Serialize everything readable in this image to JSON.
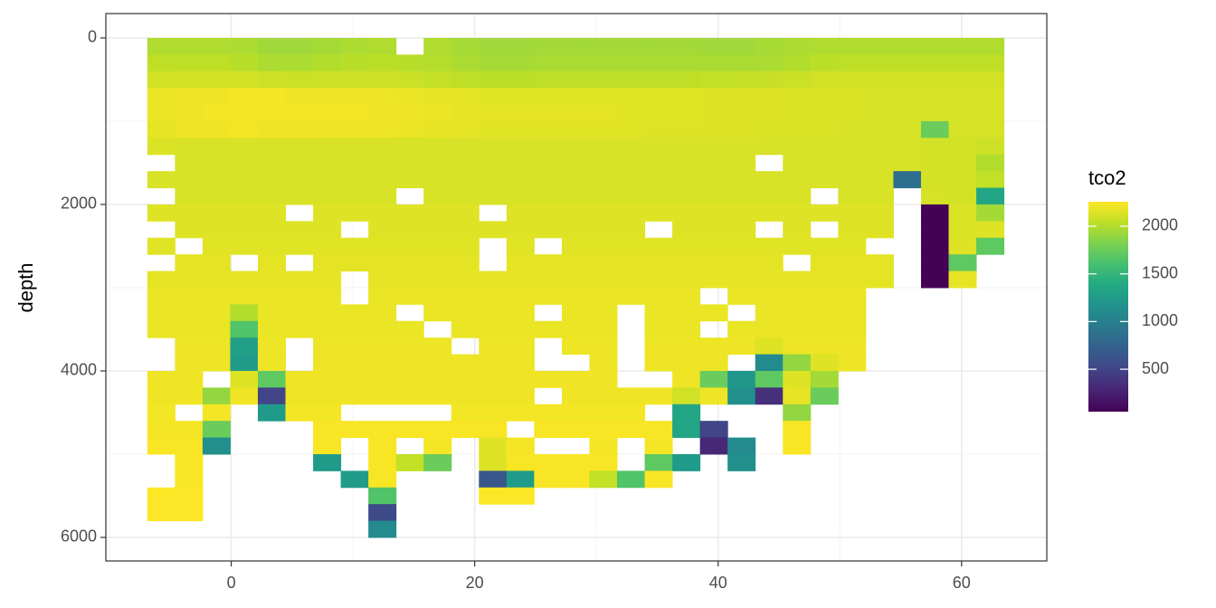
{
  "chart_data": {
    "type": "heatmap",
    "y_label": "depth",
    "legend_title": "tco2",
    "palette": "viridis",
    "grid": true,
    "y_reverse": true,
    "xlim": [
      -10.3,
      67.0
    ],
    "ylim": [
      -293,
      6283
    ],
    "xticks": [
      0,
      20,
      40,
      60
    ],
    "yticks": [
      0,
      2000,
      4000,
      6000
    ],
    "color_limits": [
      55,
      2256
    ],
    "color_ticks": [
      500,
      1000,
      1500,
      2000
    ],
    "x": [
      -5.76,
      -3.49,
      -1.22,
      1.05,
      3.32,
      5.59,
      7.86,
      10.13,
      12.4,
      14.67,
      16.94,
      19.21,
      21.48,
      23.75,
      26.02,
      28.29,
      30.56,
      32.83,
      35.1,
      37.37,
      39.64,
      41.91,
      44.18,
      46.45,
      48.72,
      50.99,
      53.26,
      55.53,
      57.8,
      60.07,
      62.34
    ],
    "y": [
      100,
      300,
      500,
      700,
      900,
      1100,
      1300,
      1500,
      1700,
      1900,
      2100,
      2300,
      2500,
      2700,
      2900,
      3100,
      3300,
      3500,
      3700,
      3900,
      4100,
      4300,
      4500,
      4700,
      4900,
      5100,
      5300,
      5500,
      5700,
      5900
    ],
    "values": [
      [
        1990,
        1990,
        1990,
        1980,
        1940,
        1940,
        1960,
        1980,
        1990,
        null,
        1990,
        1960,
        1940,
        1940,
        1950,
        1950,
        1950,
        1950,
        1950,
        1950,
        1940,
        1940,
        1960,
        1980,
        1990,
        1990,
        1990,
        1990,
        1990,
        1990,
        1990
      ],
      [
        2040,
        2040,
        2040,
        2020,
        1980,
        1980,
        2000,
        2020,
        2030,
        2020,
        2010,
        1980,
        1960,
        1960,
        1970,
        1970,
        1970,
        1970,
        1970,
        1970,
        1970,
        1970,
        1980,
        2000,
        2030,
        2040,
        2040,
        2040,
        2040,
        2040,
        2040
      ],
      [
        2100,
        2110,
        2110,
        2110,
        2090,
        2080,
        2090,
        2090,
        2090,
        2080,
        2060,
        2040,
        2030,
        2030,
        2040,
        2040,
        2040,
        2040,
        2040,
        2040,
        2050,
        2060,
        2070,
        2080,
        2100,
        2100,
        2100,
        2100,
        2100,
        2100,
        2100
      ],
      [
        2190,
        2200,
        2210,
        2220,
        2220,
        2210,
        2210,
        2200,
        2200,
        2190,
        2180,
        2170,
        2160,
        2160,
        2160,
        2160,
        2160,
        2160,
        2160,
        2160,
        2150,
        2150,
        2150,
        2140,
        2140,
        2140,
        2130,
        2130,
        2120,
        2120,
        2120
      ],
      [
        2190,
        2210,
        2220,
        2230,
        2230,
        2230,
        2220,
        2220,
        2210,
        2200,
        2190,
        2180,
        2170,
        2170,
        2170,
        2170,
        2170,
        2160,
        2160,
        2160,
        2150,
        2150,
        2150,
        2140,
        2140,
        2140,
        2130,
        2130,
        2120,
        2120,
        2120
      ],
      [
        2180,
        2200,
        2210,
        2220,
        2210,
        2210,
        2200,
        2200,
        2200,
        2190,
        2180,
        2170,
        2160,
        2160,
        2160,
        2160,
        2160,
        2160,
        2150,
        2150,
        2150,
        2150,
        2140,
        2140,
        2140,
        2130,
        2130,
        2120,
        1750,
        2120,
        2120
      ],
      [
        2140,
        2130,
        2130,
        2130,
        2130,
        2130,
        2130,
        2130,
        2130,
        2130,
        2130,
        2130,
        2130,
        2130,
        2130,
        2130,
        2130,
        2130,
        2130,
        2130,
        2130,
        2130,
        2130,
        2130,
        2130,
        2130,
        2130,
        2120,
        2110,
        2100,
        2090
      ],
      [
        null,
        2130,
        2130,
        2130,
        2130,
        2130,
        2130,
        2130,
        2130,
        2130,
        2130,
        2130,
        2130,
        2130,
        2130,
        2130,
        2130,
        2130,
        2130,
        2130,
        2130,
        2130,
        null,
        2130,
        2130,
        2130,
        2130,
        2120,
        2110,
        2100,
        2000
      ],
      [
        2130,
        2130,
        2130,
        2130,
        2130,
        2130,
        2130,
        2130,
        2130,
        2130,
        2130,
        2130,
        2130,
        2130,
        2130,
        2130,
        2130,
        2130,
        2130,
        2130,
        2130,
        2130,
        2130,
        2130,
        2130,
        2130,
        2130,
        850,
        2110,
        2100,
        2050
      ],
      [
        null,
        2130,
        2130,
        2130,
        2130,
        2130,
        2130,
        2130,
        2130,
        null,
        2130,
        2130,
        2130,
        2130,
        2130,
        2130,
        2130,
        2130,
        2130,
        2130,
        2130,
        2130,
        2130,
        2130,
        null,
        2130,
        2130,
        null,
        2120,
        2110,
        1350
      ],
      [
        2150,
        2150,
        2150,
        2150,
        2150,
        null,
        2150,
        2150,
        2150,
        2150,
        2150,
        2150,
        null,
        2150,
        2150,
        2150,
        2150,
        2150,
        2150,
        2150,
        2150,
        2150,
        2150,
        2150,
        2150,
        2150,
        2150,
        null,
        60,
        2140,
        1950
      ],
      [
        null,
        2150,
        2150,
        2150,
        2150,
        2150,
        2150,
        null,
        2150,
        2150,
        2150,
        2150,
        2150,
        2150,
        2150,
        2150,
        2150,
        2150,
        null,
        2150,
        2150,
        2150,
        null,
        2150,
        null,
        2150,
        2150,
        null,
        60,
        2140,
        2150
      ],
      [
        2160,
        null,
        2160,
        2160,
        2160,
        2160,
        2160,
        2160,
        2160,
        2160,
        2160,
        2160,
        null,
        2160,
        null,
        2160,
        2160,
        2160,
        2160,
        2160,
        2160,
        2160,
        2160,
        2160,
        2160,
        2160,
        null,
        null,
        60,
        2150,
        1700
      ],
      [
        null,
        2170,
        2170,
        null,
        2170,
        null,
        2170,
        2170,
        2170,
        2170,
        2170,
        2170,
        null,
        2170,
        2170,
        2170,
        2170,
        2170,
        2170,
        2170,
        2170,
        2170,
        2170,
        null,
        2170,
        2170,
        2170,
        null,
        60,
        1700,
        null
      ],
      [
        2180,
        2180,
        2180,
        2180,
        2180,
        2180,
        2180,
        null,
        2180,
        2180,
        2180,
        2180,
        2180,
        2180,
        2180,
        2180,
        2180,
        2180,
        2180,
        2180,
        2180,
        2180,
        2180,
        2180,
        2180,
        2180,
        2170,
        null,
        60,
        2180,
        null
      ],
      [
        2190,
        2190,
        2190,
        2190,
        2190,
        2190,
        2190,
        null,
        2190,
        2190,
        2190,
        2190,
        2190,
        2190,
        2190,
        2190,
        2190,
        2190,
        2190,
        2190,
        null,
        2190,
        2190,
        2190,
        2190,
        2190,
        null,
        null,
        null,
        null,
        null
      ],
      [
        2190,
        2190,
        2190,
        2000,
        2190,
        2190,
        2190,
        2190,
        2190,
        null,
        2190,
        2190,
        2190,
        2190,
        null,
        2190,
        2190,
        null,
        2190,
        2190,
        2190,
        null,
        2190,
        2190,
        2190,
        2190,
        null,
        null,
        null,
        null,
        null
      ],
      [
        2190,
        2190,
        2190,
        1650,
        2190,
        2190,
        2190,
        2190,
        2190,
        2190,
        null,
        2190,
        2190,
        2190,
        2190,
        2190,
        2190,
        null,
        2190,
        2190,
        null,
        2190,
        2190,
        2190,
        2190,
        2190,
        null,
        null,
        null,
        null,
        null
      ],
      [
        null,
        2200,
        2200,
        1300,
        2200,
        null,
        2200,
        2200,
        2200,
        2200,
        2200,
        null,
        2200,
        2200,
        null,
        2200,
        2200,
        null,
        2200,
        2200,
        2200,
        2200,
        2150,
        2200,
        2200,
        2200,
        null,
        null,
        null,
        null,
        null
      ],
      [
        null,
        2200,
        2200,
        1250,
        2200,
        null,
        2200,
        2200,
        2200,
        2200,
        2200,
        2200,
        2200,
        2200,
        null,
        null,
        2200,
        null,
        2200,
        2200,
        2200,
        null,
        1100,
        1900,
        2150,
        2200,
        null,
        null,
        null,
        null,
        null
      ],
      [
        2210,
        2210,
        null,
        2150,
        1700,
        2210,
        2210,
        2210,
        2210,
        2210,
        2210,
        2210,
        2210,
        2210,
        2210,
        2210,
        2210,
        null,
        null,
        2210,
        1750,
        1200,
        1700,
        2150,
        1950,
        null,
        null,
        null,
        null,
        null,
        null
      ],
      [
        2210,
        2210,
        1900,
        2210,
        500,
        2210,
        2210,
        2210,
        2210,
        2210,
        2210,
        2210,
        2210,
        2210,
        null,
        2210,
        2210,
        2210,
        2210,
        2100,
        2200,
        1150,
        350,
        2180,
        1750,
        null,
        null,
        null,
        null,
        null,
        null
      ],
      [
        2220,
        null,
        2220,
        null,
        1250,
        2220,
        2220,
        null,
        null,
        null,
        null,
        2220,
        2220,
        2220,
        2220,
        2220,
        2220,
        2220,
        null,
        1350,
        null,
        null,
        null,
        1900,
        null,
        null,
        null,
        null,
        null,
        null,
        null
      ],
      [
        2230,
        2230,
        1750,
        null,
        null,
        null,
        2240,
        2240,
        2240,
        2240,
        2240,
        2240,
        2240,
        null,
        2240,
        2240,
        2240,
        2240,
        2240,
        1350,
        500,
        null,
        null,
        2240,
        null,
        null,
        null,
        null,
        null,
        null,
        null
      ],
      [
        2240,
        2240,
        1150,
        null,
        null,
        null,
        2240,
        null,
        2240,
        null,
        2230,
        null,
        2150,
        2230,
        null,
        null,
        2230,
        null,
        2230,
        null,
        300,
        1100,
        null,
        2240,
        null,
        null,
        null,
        null,
        null,
        null,
        null
      ],
      [
        null,
        2240,
        null,
        null,
        null,
        null,
        1250,
        null,
        2240,
        2050,
        1750,
        null,
        2150,
        2240,
        2240,
        2240,
        2240,
        null,
        1700,
        1250,
        null,
        1150,
        null,
        null,
        null,
        null,
        null,
        null,
        null,
        null,
        null
      ],
      [
        null,
        2240,
        null,
        null,
        null,
        null,
        null,
        1250,
        2240,
        null,
        null,
        null,
        650,
        1250,
        2240,
        2240,
        2050,
        1650,
        2240,
        null,
        null,
        null,
        null,
        null,
        null,
        null,
        null,
        null,
        null,
        null,
        null
      ],
      [
        2250,
        2250,
        null,
        null,
        null,
        null,
        null,
        null,
        1650,
        null,
        null,
        null,
        2250,
        2250,
        null,
        null,
        null,
        null,
        null,
        null,
        null,
        null,
        null,
        null,
        null,
        null,
        null,
        null,
        null,
        null,
        null
      ],
      [
        2250,
        2250,
        null,
        null,
        null,
        null,
        null,
        null,
        550,
        null,
        null,
        null,
        null,
        null,
        null,
        null,
        null,
        null,
        null,
        null,
        null,
        null,
        null,
        null,
        null,
        null,
        null,
        null,
        null,
        null,
        null
      ],
      [
        null,
        null,
        null,
        null,
        null,
        null,
        null,
        null,
        1100,
        null,
        null,
        null,
        null,
        null,
        null,
        null,
        null,
        null,
        null,
        null,
        null,
        null,
        null,
        null,
        null,
        null,
        null,
        null,
        null,
        null,
        null
      ]
    ]
  }
}
